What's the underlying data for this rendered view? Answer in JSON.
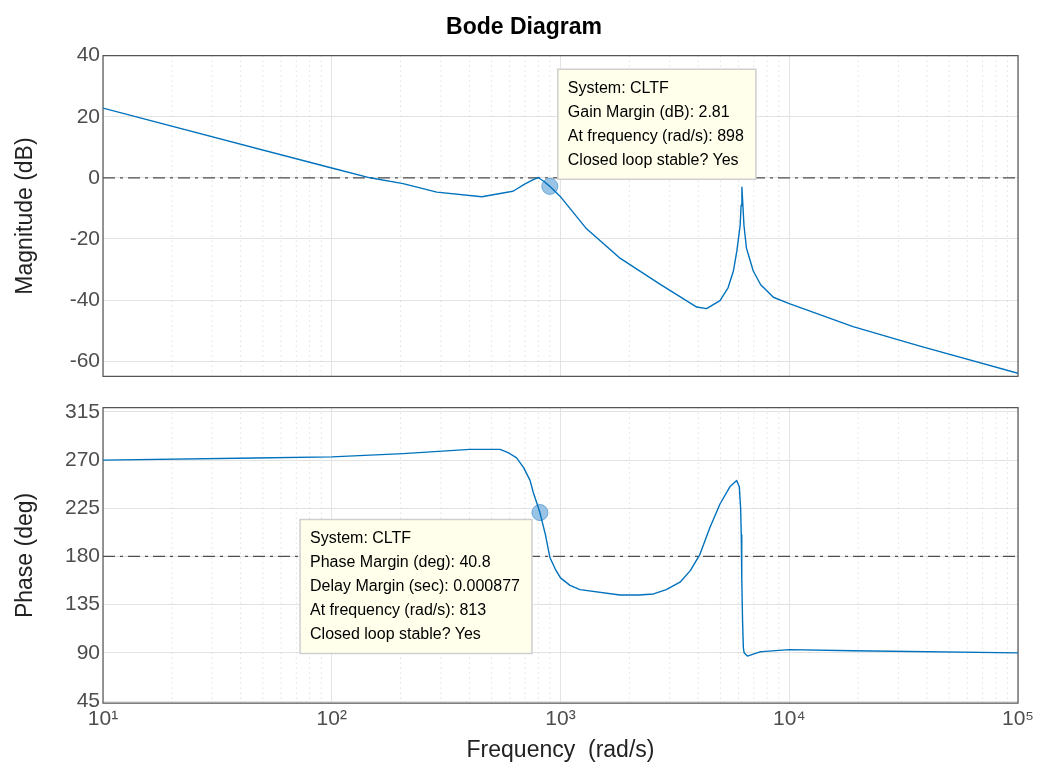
{
  "chart_data": [
    {
      "type": "line",
      "title": "Bode Diagram",
      "ylabel": "Magnitude (dB)",
      "log": "x",
      "grid": true,
      "tick_labels": "y",
      "legend": false,
      "xlim": [
        10,
        100000
      ],
      "xticks": [
        10,
        100,
        1000,
        10000,
        100000
      ],
      "ylim": [
        -65,
        40
      ],
      "yticks": [
        -60,
        -40,
        -20,
        0,
        20,
        40
      ],
      "ref_lines": [
        {
          "axis": "y",
          "value": 0,
          "color": "#4d4d4d",
          "line_style": "dashed"
        }
      ],
      "series": [
        {
          "color": "#0072bd",
          "marker": "none",
          "x": [
            10,
            100,
            147,
            205,
            288,
            453,
            620,
            700,
            760,
            800,
            850,
            898,
            995,
            1300,
            1820,
            2720,
            3940,
            4350,
            4980,
            5400,
            5700,
            5900,
            6100,
            6160,
            6210,
            6270,
            6340,
            6500,
            6960,
            7500,
            8520,
            10000,
            19000,
            37300,
            100000
          ],
          "values": [
            22.8,
            3.2,
            0,
            -1.9,
            -4.7,
            -6.2,
            -4.4,
            -2.0,
            -0.6,
            0.1,
            -1.3,
            -2.8,
            -6.0,
            -16.7,
            -26.3,
            -34.8,
            -42.3,
            -42.8,
            -40.2,
            -36,
            -30.5,
            -24,
            -15.6,
            -9,
            -3.1,
            -9,
            -15.6,
            -23,
            -30.5,
            -35,
            -39.1,
            -41.2,
            -48.7,
            -55.1,
            -64
          ]
        },
        {
          "type": "scatter",
          "color": "#9ac4e6",
          "marker": "circle",
          "x": [
            898
          ],
          "values": [
            -2.8
          ]
        }
      ],
      "annotations": [
        {
          "text": "System: CLTF\nGain Margin (dB): 2.81\nAt frequency (rad/s): 898\nClosed loop stable? Yes",
          "x": 898,
          "y": -2.8
        }
      ]
    },
    {
      "type": "line",
      "ylabel": "Phase (deg)",
      "xlabel": "Frequency  (rad/s)",
      "log": "x",
      "grid": true,
      "legend": false,
      "xlim": [
        10,
        100000
      ],
      "xticks": [
        {
          "value": 10,
          "label": "10¹"
        },
        {
          "value": 100,
          "label": "10²"
        },
        {
          "value": 1000,
          "label": "10³"
        },
        {
          "value": 10000,
          "label": "10⁴"
        },
        {
          "value": 100000,
          "label": "10⁵"
        }
      ],
      "ylim": [
        43,
        319
      ],
      "yticks": [
        45,
        90,
        135,
        180,
        225,
        270,
        315
      ],
      "ref_lines": [
        {
          "axis": "y",
          "value": 180,
          "color": "#4d4d4d",
          "line_style": "dashed"
        }
      ],
      "series": [
        {
          "color": "#0072bd",
          "marker": "none",
          "x": [
            10,
            100,
            205,
            402,
            544,
            590,
            643,
            690,
            736,
            760,
            813,
            860,
            899,
            950,
            1000,
            1100,
            1217,
            1820,
            2200,
            2550,
            2900,
            3330,
            3700,
            4070,
            4500,
            4980,
            5500,
            5890,
            6050,
            6130,
            6170,
            6200,
            6250,
            6300,
            6350,
            6560,
            7450,
            10000,
            19000,
            100000
          ],
          "values": [
            270,
            273,
            276,
            280,
            280,
            277,
            272,
            263,
            251,
            240,
            221,
            200,
            179,
            168,
            160,
            153,
            149,
            144,
            144,
            145,
            149,
            156,
            167,
            182,
            207,
            229,
            245,
            251,
            245,
            225,
            200,
            160,
            120,
            95,
            90,
            87,
            91,
            93,
            92,
            90
          ]
        },
        {
          "type": "scatter",
          "color": "#9ac4e6",
          "marker": "circle",
          "x": [
            813
          ],
          "values": [
            221
          ]
        }
      ],
      "annotations": [
        {
          "text": "System: CLTF\nPhase Margin (deg): 40.8\nDelay Margin (sec): 0.000877\nAt frequency (rad/s): 813\nClosed loop stable? Yes",
          "x": 813,
          "y": 221
        }
      ]
    }
  ]
}
